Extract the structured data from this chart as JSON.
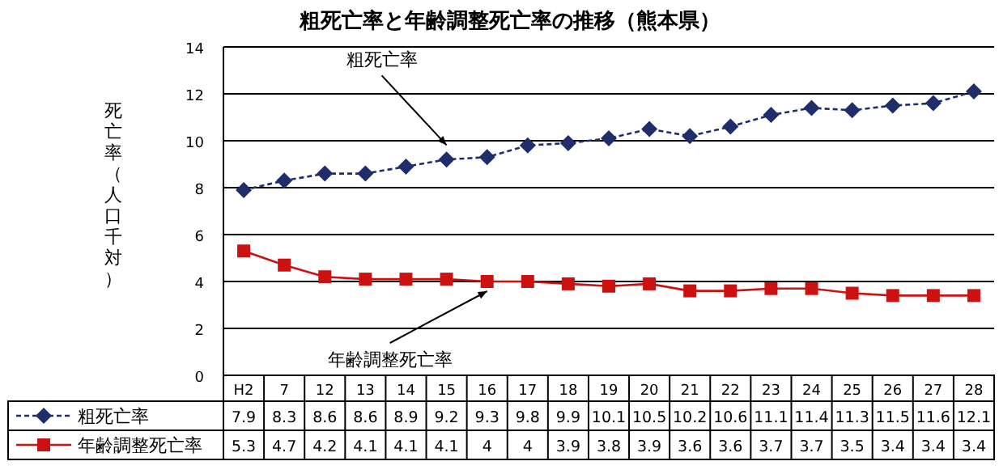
{
  "chart_data": {
    "type": "line",
    "title": "粗死亡率と年齢調整死亡率の推移（熊本県）",
    "ylabel": "死亡率（人口千対）",
    "categories": [
      "H2",
      "7",
      "12",
      "13",
      "14",
      "15",
      "16",
      "17",
      "18",
      "19",
      "20",
      "21",
      "22",
      "23",
      "24",
      "25",
      "26",
      "27",
      "28"
    ],
    "series": [
      {
        "name": "粗死亡率",
        "color": "#1f2d6b",
        "marker": "diamond",
        "line_style": "dashed",
        "values": [
          7.9,
          8.3,
          8.6,
          8.6,
          8.9,
          9.2,
          9.3,
          9.8,
          9.9,
          10.1,
          10.5,
          10.2,
          10.6,
          11.1,
          11.4,
          11.3,
          11.5,
          11.6,
          12.1
        ]
      },
      {
        "name": "年齢調整死亡率",
        "color": "#cc1111",
        "marker": "square",
        "line_style": "solid",
        "values": [
          5.3,
          4.7,
          4.2,
          4.1,
          4.1,
          4.1,
          4,
          4,
          3.9,
          3.8,
          3.9,
          3.6,
          3.6,
          3.7,
          3.7,
          3.5,
          3.4,
          3.4,
          3.4
        ]
      }
    ],
    "annotations": [
      {
        "text": "粗死亡率",
        "x": "15",
        "y": 9.4
      },
      {
        "text": "年齢調整死亡率",
        "x": "16",
        "y": 4
      }
    ],
    "ylim": [
      0,
      14
    ],
    "yticks": [
      0,
      2,
      4,
      6,
      8,
      10,
      12,
      14
    ],
    "grid": "y",
    "legend": "bottom",
    "data_labels": true
  }
}
